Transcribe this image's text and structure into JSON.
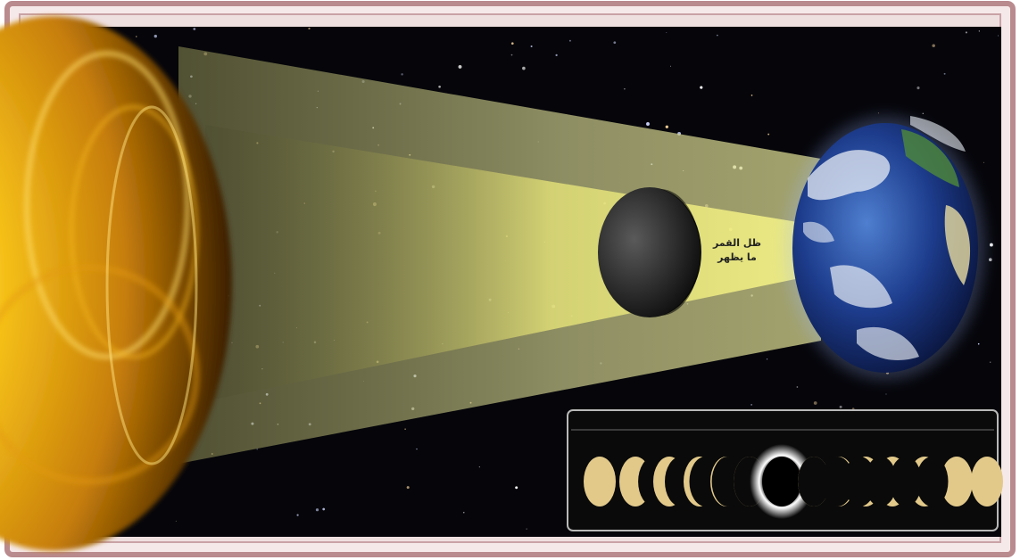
{
  "colors": {
    "frame_outer": "#b98a8e",
    "frame_inner": "#f4e4e4",
    "space": "#05050a",
    "sun_core": "#f7c21a",
    "sun_glow": "#ffd34a",
    "penumbra": "#d9d98a",
    "umbra": "#f2f07a",
    "moon": "#2a2a2a",
    "earth_ocean": "#1f3f8f",
    "earth_cloud": "#e9eef5",
    "panel_border": "#b9b9b9",
    "phase_gold": "#e2c98a",
    "corona": "#f5f5f5"
  },
  "diagram": {
    "shadow_label": {
      "line1": "ظل القمر",
      "line2": "ما يظهر"
    },
    "phase_panel": {
      "header_left": "",
      "header_right": ""
    }
  }
}
